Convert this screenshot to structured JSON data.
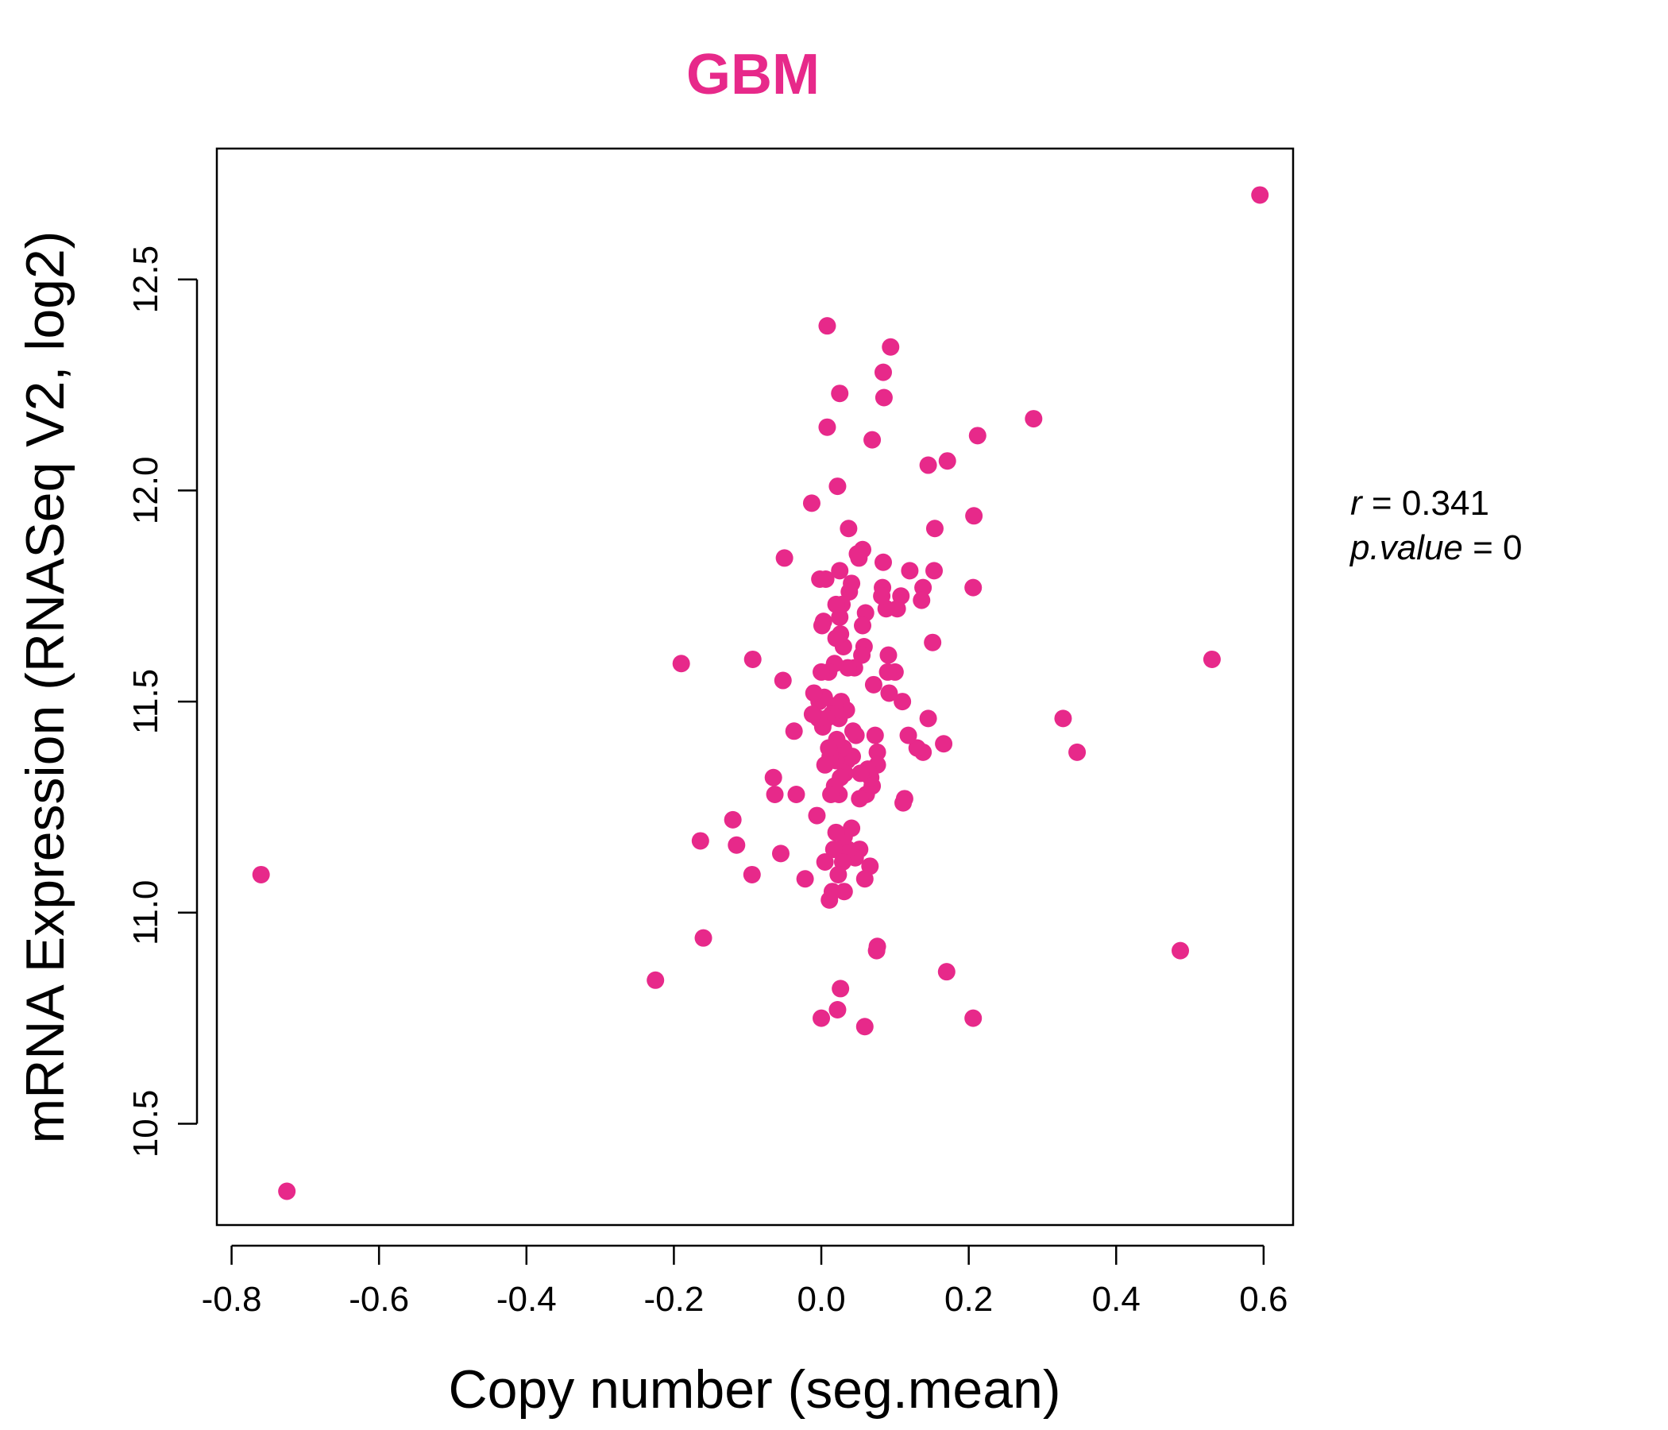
{
  "chart_data": {
    "type": "scatter",
    "title": "GBM",
    "xlabel": "Copy number (seg.mean)",
    "ylabel": "mRNA Expression (RNASeq V2, log2)",
    "xlim": [
      -0.82,
      0.64
    ],
    "ylim": [
      10.26,
      12.81
    ],
    "x_ticks": [
      -0.8,
      -0.6,
      -0.4,
      -0.2,
      0.0,
      0.2,
      0.4,
      0.6
    ],
    "x_tick_labels": [
      "-0.8",
      "-0.6",
      "-0.4",
      "-0.2",
      "0.0",
      "0.2",
      "0.4",
      "0.6"
    ],
    "y_ticks": [
      10.5,
      11.0,
      11.5,
      12.0,
      12.5
    ],
    "y_tick_labels": [
      "10.5",
      "11.0",
      "11.5",
      "12.0",
      "12.5"
    ],
    "grid": false,
    "point_color": "#E7298A",
    "annotation": {
      "r_label": "r",
      "r_value": "0.341",
      "p_label": "p.value",
      "p_value": "0"
    },
    "points": [
      [
        0.595,
        12.7
      ],
      [
        -0.76,
        11.09
      ],
      [
        -0.725,
        10.34
      ],
      [
        0.53,
        11.6
      ],
      [
        0.487,
        10.91
      ],
      [
        0.347,
        11.38
      ],
      [
        0.328,
        11.46
      ],
      [
        0.288,
        12.17
      ],
      [
        0.212,
        12.13
      ],
      [
        0.207,
        11.94
      ],
      [
        0.206,
        11.77
      ],
      [
        0.206,
        10.75
      ],
      [
        0.171,
        12.07
      ],
      [
        0.17,
        10.86
      ],
      [
        0.166,
        11.4
      ],
      [
        0.154,
        11.91
      ],
      [
        0.153,
        11.81
      ],
      [
        0.151,
        11.64
      ],
      [
        0.145,
        12.06
      ],
      [
        0.145,
        11.46
      ],
      [
        0.138,
        11.38
      ],
      [
        0.138,
        11.77
      ],
      [
        0.136,
        11.74
      ],
      [
        0.13,
        11.39
      ],
      [
        0.12,
        11.81
      ],
      [
        0.118,
        11.42
      ],
      [
        0.113,
        11.27
      ],
      [
        0.111,
        11.26
      ],
      [
        0.11,
        11.5
      ],
      [
        0.108,
        11.75
      ],
      [
        0.103,
        11.72
      ],
      [
        0.1,
        11.57
      ],
      [
        0.094,
        12.34
      ],
      [
        0.092,
        11.52
      ],
      [
        0.091,
        11.61
      ],
      [
        0.09,
        11.57
      ],
      [
        0.088,
        11.72
      ],
      [
        0.085,
        12.22
      ],
      [
        0.084,
        12.28
      ],
      [
        0.084,
        11.83
      ],
      [
        0.083,
        11.77
      ],
      [
        0.082,
        11.75
      ],
      [
        0.076,
        11.38
      ],
      [
        0.076,
        11.35
      ],
      [
        0.076,
        10.92
      ],
      [
        0.075,
        10.91
      ],
      [
        0.073,
        11.42
      ],
      [
        0.071,
        11.54
      ],
      [
        0.069,
        11.3
      ],
      [
        0.069,
        12.12
      ],
      [
        0.067,
        11.32
      ],
      [
        0.066,
        11.11
      ],
      [
        0.063,
        11.34
      ],
      [
        0.061,
        11.28
      ],
      [
        0.06,
        11.71
      ],
      [
        0.059,
        11.08
      ],
      [
        0.059,
        10.73
      ],
      [
        0.058,
        11.63
      ],
      [
        0.056,
        11.86
      ],
      [
        0.056,
        11.68
      ],
      [
        0.055,
        11.61
      ],
      [
        0.053,
        11.33
      ],
      [
        0.052,
        11.27
      ],
      [
        0.052,
        11.15
      ],
      [
        0.051,
        11.84
      ],
      [
        0.049,
        11.85
      ],
      [
        0.047,
        11.42
      ],
      [
        0.046,
        11.13
      ],
      [
        0.045,
        11.58
      ],
      [
        0.043,
        11.43
      ],
      [
        0.042,
        11.37
      ],
      [
        0.041,
        11.78
      ],
      [
        0.041,
        11.2
      ],
      [
        0.038,
        11.76
      ],
      [
        0.037,
        11.91
      ],
      [
        0.036,
        11.58
      ],
      [
        0.036,
        11.15
      ],
      [
        0.035,
        11.36
      ],
      [
        0.034,
        11.48
      ],
      [
        0.032,
        11.33
      ],
      [
        0.031,
        11.18
      ],
      [
        0.031,
        11.05
      ],
      [
        0.03,
        11.63
      ],
      [
        0.03,
        11.39
      ],
      [
        0.029,
        11.12
      ],
      [
        0.028,
        11.73
      ],
      [
        0.027,
        11.5
      ],
      [
        0.026,
        11.32
      ],
      [
        0.026,
        11.66
      ],
      [
        0.026,
        10.82
      ],
      [
        0.025,
        12.23
      ],
      [
        0.025,
        11.81
      ],
      [
        0.025,
        11.7
      ],
      [
        0.024,
        11.46
      ],
      [
        0.024,
        11.28
      ],
      [
        0.023,
        11.09
      ],
      [
        0.022,
        12.01
      ],
      [
        0.022,
        10.77
      ],
      [
        0.021,
        11.41
      ],
      [
        0.02,
        11.73
      ],
      [
        0.02,
        11.65
      ],
      [
        0.02,
        11.36
      ],
      [
        0.02,
        11.19
      ],
      [
        0.019,
        11.49
      ],
      [
        0.018,
        11.59
      ],
      [
        0.018,
        11.3
      ],
      [
        0.017,
        11.15
      ],
      [
        0.015,
        11.05
      ],
      [
        0.014,
        11.47
      ],
      [
        0.013,
        11.28
      ],
      [
        0.012,
        11.37
      ],
      [
        0.011,
        11.03
      ],
      [
        0.01,
        11.57
      ],
      [
        0.01,
        11.39
      ],
      [
        0.008,
        12.39
      ],
      [
        0.008,
        12.15
      ],
      [
        0.007,
        11.46
      ],
      [
        0.006,
        11.79
      ],
      [
        0.005,
        11.35
      ],
      [
        0.005,
        11.12
      ],
      [
        0.004,
        11.51
      ],
      [
        0.003,
        11.69
      ],
      [
        0.002,
        11.44
      ],
      [
        0.001,
        11.68
      ],
      [
        0.0,
        11.57
      ],
      [
        0.0,
        10.75
      ],
      [
        -0.002,
        11.79
      ],
      [
        -0.003,
        11.5
      ],
      [
        -0.004,
        11.46
      ],
      [
        -0.006,
        11.23
      ],
      [
        -0.01,
        11.52
      ],
      [
        -0.012,
        11.47
      ],
      [
        -0.013,
        11.97
      ],
      [
        -0.022,
        11.08
      ],
      [
        -0.034,
        11.28
      ],
      [
        -0.037,
        11.43
      ],
      [
        -0.05,
        11.84
      ],
      [
        -0.052,
        11.55
      ],
      [
        -0.055,
        11.14
      ],
      [
        -0.063,
        11.28
      ],
      [
        -0.065,
        11.32
      ],
      [
        -0.093,
        11.6
      ],
      [
        -0.094,
        11.09
      ],
      [
        -0.115,
        11.16
      ],
      [
        -0.12,
        11.22
      ],
      [
        -0.16,
        10.94
      ],
      [
        -0.164,
        11.17
      ],
      [
        -0.19,
        11.59
      ],
      [
        -0.225,
        10.84
      ]
    ]
  }
}
